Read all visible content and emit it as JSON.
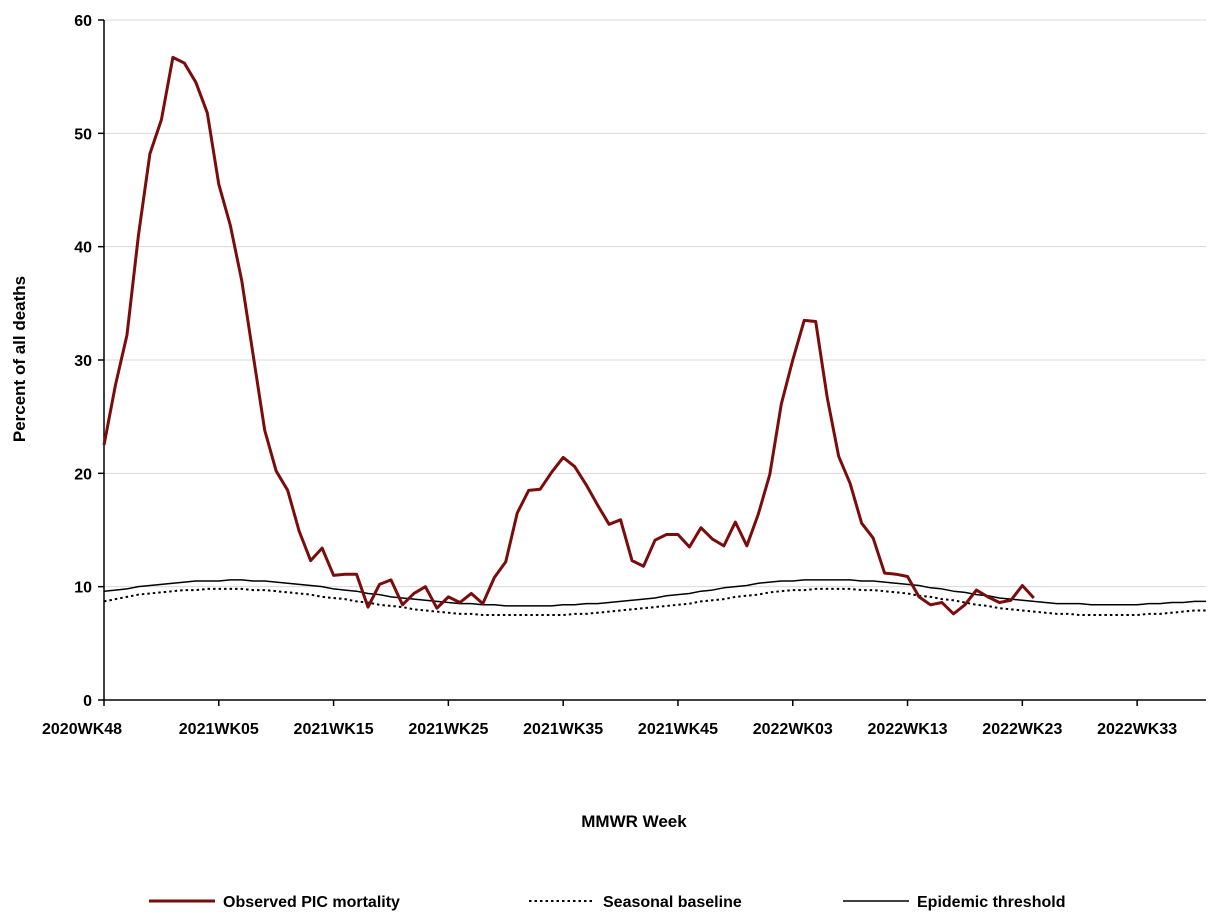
{
  "chart_data": {
    "type": "line",
    "title": "",
    "xlabel": "MMWR Week",
    "ylabel": "Percent of all deaths",
    "ylim": [
      0,
      60
    ],
    "yticks": [
      0,
      10,
      20,
      30,
      40,
      50,
      60
    ],
    "grid": "horizontal",
    "legend_position": "bottom",
    "x_week_count": 97,
    "x_tick_labels": [
      "2020WK48",
      "2021WK05",
      "2021WK15",
      "2021WK25",
      "2021WK35",
      "2021WK45",
      "2022WK03",
      "2022WK13",
      "2022WK23",
      "2022WK33"
    ],
    "x_tick_every": 10,
    "series": [
      {
        "name": "Observed PIC mortality",
        "color": "#7B0C0C",
        "style": "solid-thick",
        "values": [
          22.5,
          27.8,
          32.2,
          41.0,
          48.2,
          51.2,
          56.7,
          56.2,
          54.5,
          51.8,
          45.5,
          41.9,
          37.0,
          30.4,
          23.8,
          20.2,
          18.5,
          14.9,
          12.3,
          13.4,
          11.0,
          11.1,
          11.1,
          8.2,
          10.2,
          10.6,
          8.4,
          9.4,
          10.0,
          8.1,
          9.1,
          8.6,
          9.4,
          8.5,
          10.8,
          12.2,
          16.5,
          18.5,
          18.6,
          20.1,
          21.4,
          20.6,
          19.0,
          17.2,
          15.5,
          15.9,
          12.3,
          11.8,
          14.1,
          14.6,
          14.6,
          13.5,
          15.2,
          14.2,
          13.6,
          15.7,
          13.6,
          16.4,
          19.9,
          26.1,
          30.0,
          33.5,
          33.4,
          26.7,
          21.5,
          19.1,
          15.6,
          14.3,
          11.2,
          11.1,
          10.9,
          9.1,
          8.4,
          8.6,
          7.6,
          8.4,
          9.7,
          9.1,
          8.6,
          8.8,
          10.1,
          9.0
        ]
      },
      {
        "name": "Seasonal baseline",
        "color": "#000000",
        "style": "dotted",
        "values": [
          8.7,
          8.9,
          9.1,
          9.3,
          9.4,
          9.5,
          9.6,
          9.7,
          9.7,
          9.8,
          9.8,
          9.8,
          9.8,
          9.7,
          9.7,
          9.6,
          9.5,
          9.4,
          9.3,
          9.1,
          9.0,
          8.9,
          8.7,
          8.6,
          8.4,
          8.3,
          8.2,
          8.0,
          7.9,
          7.8,
          7.7,
          7.6,
          7.6,
          7.5,
          7.5,
          7.5,
          7.5,
          7.5,
          7.5,
          7.5,
          7.5,
          7.6,
          7.6,
          7.7,
          7.8,
          7.9,
          8.0,
          8.1,
          8.2,
          8.3,
          8.4,
          8.5,
          8.7,
          8.8,
          8.9,
          9.1,
          9.2,
          9.3,
          9.5,
          9.6,
          9.7,
          9.7,
          9.8,
          9.8,
          9.8,
          9.8,
          9.7,
          9.7,
          9.6,
          9.5,
          9.4,
          9.2,
          9.1,
          8.9,
          8.8,
          8.6,
          8.4,
          8.3,
          8.1,
          8.0,
          7.9,
          7.8,
          7.7,
          7.6,
          7.6,
          7.5,
          7.5,
          7.5,
          7.5,
          7.5,
          7.5,
          7.6,
          7.6,
          7.7,
          7.8,
          7.9,
          7.9
        ]
      },
      {
        "name": "Epidemic threshold",
        "color": "#000000",
        "style": "solid-thin",
        "values": [
          9.6,
          9.7,
          9.8,
          10.0,
          10.1,
          10.2,
          10.3,
          10.4,
          10.5,
          10.5,
          10.5,
          10.6,
          10.6,
          10.5,
          10.5,
          10.4,
          10.3,
          10.2,
          10.1,
          10.0,
          9.8,
          9.7,
          9.6,
          9.4,
          9.3,
          9.1,
          9.0,
          8.9,
          8.8,
          8.7,
          8.6,
          8.5,
          8.5,
          8.4,
          8.4,
          8.3,
          8.3,
          8.3,
          8.3,
          8.3,
          8.4,
          8.4,
          8.5,
          8.5,
          8.6,
          8.7,
          8.8,
          8.9,
          9.0,
          9.2,
          9.3,
          9.4,
          9.6,
          9.7,
          9.9,
          10.0,
          10.1,
          10.3,
          10.4,
          10.5,
          10.5,
          10.6,
          10.6,
          10.6,
          10.6,
          10.6,
          10.5,
          10.5,
          10.4,
          10.3,
          10.2,
          10.1,
          9.9,
          9.8,
          9.6,
          9.5,
          9.3,
          9.2,
          9.0,
          8.9,
          8.8,
          8.7,
          8.6,
          8.5,
          8.5,
          8.5,
          8.4,
          8.4,
          8.4,
          8.4,
          8.4,
          8.5,
          8.5,
          8.6,
          8.6,
          8.7,
          8.7
        ]
      }
    ]
  }
}
